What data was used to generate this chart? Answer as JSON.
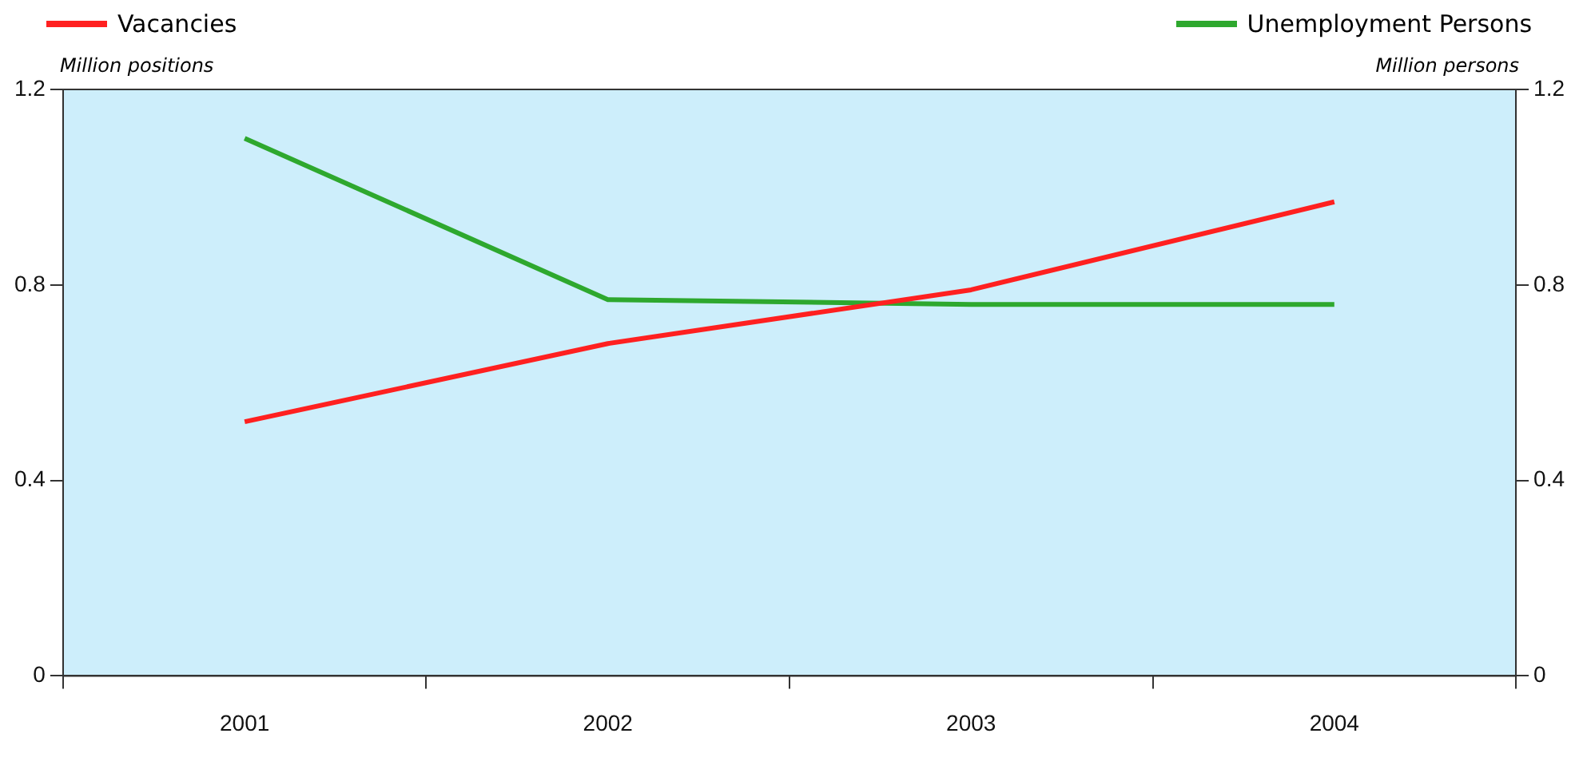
{
  "chart_data": {
    "type": "line",
    "ylabel": "Million positions",
    "y2label": "Million persons",
    "categories": [
      "2001",
      "2002",
      "2003",
      "2004"
    ],
    "series": [
      {
        "name": "Vacancies",
        "color": "#ff2020",
        "values": [
          0.52,
          0.68,
          0.79,
          0.97
        ]
      },
      {
        "name": "Unemployment Persons",
        "color": "#2ea82e",
        "values": [
          1.1,
          0.77,
          0.76,
          0.76
        ],
        "axis": "y2"
      }
    ],
    "ylim": [
      0,
      1.2
    ],
    "yticks": [
      0,
      0.4,
      0.8,
      1.2
    ],
    "y2lim": [
      0,
      1.2
    ],
    "y2ticks": [
      0,
      0.4,
      0.8,
      1.2
    ],
    "grid": false,
    "legend": "top",
    "marker": "none",
    "line_style": "solid"
  }
}
